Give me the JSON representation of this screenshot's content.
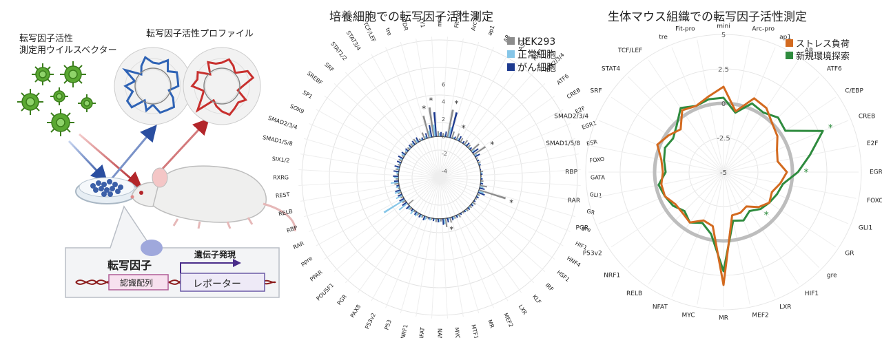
{
  "schematic": {
    "vector_label_line1": "転写因子活性",
    "vector_label_line2": "測定用ウイルスベクター",
    "profile_label": "転写因子活性プロファイル",
    "tf_label": "転写因子",
    "expression_label": "遺伝子発現",
    "recognition_label": "認識配列",
    "reporter_label": "レポーター"
  },
  "chart_mid": {
    "title": "培養細胞での転写因子活性測定",
    "legend": [
      "HEK293",
      "正常細胞",
      "がん細胞"
    ],
    "colors": {
      "hek": "#8c8c8c",
      "normal": "#86c6e8",
      "cancer": "#1d3a8f"
    },
    "ticks": [
      "6",
      "4",
      "2",
      "0",
      "-2",
      "-4"
    ],
    "labels": [
      "mini",
      "Fit-pro",
      "Arc-pro",
      "ap1",
      "AR",
      "ASCL",
      "ATF1",
      "ATF2/3/4",
      "ATF6",
      "CREB",
      "E2F",
      "EGR1",
      "ESR",
      "FOXO",
      "GATA",
      "GLI1",
      "GR",
      "gre",
      "HIF1",
      "HNF4",
      "HSF1",
      "IRF",
      "KLF",
      "LXR",
      "MEF2",
      "MR",
      "MTF1",
      "MYC",
      "NANOG",
      "NFAT",
      "NRF1",
      "P53",
      "P53v2",
      "PAX8",
      "PGR",
      "POU5F1",
      "PPAR",
      "ppre",
      "RAR",
      "RBP",
      "RELB",
      "REST",
      "RXRG",
      "SIX1/2",
      "SMAD1/5/8",
      "SMAD2/3/4",
      "SOX9",
      "SP1",
      "SREBF",
      "SRF",
      "STAT1/2",
      "STAT3/4",
      "TCF/LEF",
      "tre",
      "VDR",
      "YY1"
    ],
    "series": {
      "hek": [
        0.6,
        0.4,
        3.2,
        0.8,
        0.8,
        0.5,
        0.6,
        0.4,
        1.2,
        1.6,
        0.2,
        0.3,
        0.1,
        0.3,
        0.0,
        0.3,
        0.8,
        3.2,
        0.3,
        0.2,
        0.4,
        0.3,
        0.3,
        0.2,
        0.4,
        0.3,
        0.6,
        1.0,
        0.3,
        0.4,
        0.2,
        0.2,
        0.3,
        0.3,
        0.2,
        0.3,
        -0.8,
        0.4,
        0.3,
        0.4,
        0.2,
        0.5,
        0.3,
        0.2,
        0.4,
        0.3,
        0.4,
        0.3,
        0.2,
        0.3,
        0.4,
        0.6,
        0.3,
        0.8,
        2.6,
        3.4
      ],
      "normal": [
        0.4,
        0.2,
        1.2,
        0.2,
        0.3,
        0.1,
        0.2,
        0.2,
        0.4,
        0.3,
        0.1,
        0.2,
        0.0,
        0.2,
        0.1,
        0.2,
        0.4,
        0.6,
        0.2,
        0.1,
        0.2,
        0.2,
        0.2,
        0.1,
        0.2,
        0.3,
        0.2,
        0.6,
        0.4,
        0.2,
        0.3,
        0.4,
        0.3,
        0.5,
        0.6,
        0.4,
        1.2,
        2.8,
        0.8,
        0.7,
        0.4,
        0.9,
        0.5,
        0.3,
        0.3,
        0.2,
        0.3,
        0.4,
        0.3,
        0.2,
        0.3,
        0.4,
        0.2,
        0.3,
        0.8,
        1.4
      ],
      "cancer": [
        0.5,
        0.6,
        3.0,
        0.3,
        0.6,
        0.3,
        0.5,
        0.3,
        0.8,
        0.6,
        0.2,
        0.2,
        0.1,
        0.2,
        0.2,
        0.3,
        0.6,
        0.8,
        0.3,
        0.2,
        0.3,
        0.3,
        0.2,
        0.2,
        0.3,
        0.4,
        0.5,
        0.7,
        0.4,
        0.3,
        0.2,
        0.5,
        0.4,
        0.4,
        0.3,
        0.5,
        0.6,
        0.6,
        0.5,
        0.6,
        0.3,
        0.5,
        0.6,
        0.6,
        0.6,
        0.5,
        0.6,
        0.5,
        0.4,
        0.4,
        0.5,
        0.6,
        0.3,
        0.6,
        1.4,
        2.8
      ]
    },
    "stars": [
      "VDR",
      "YY1",
      "Arc-pro",
      "AR",
      "CREB",
      "gre",
      "MTF1"
    ]
  },
  "chart_right": {
    "title": "生体マウス組織での転写因子活性測定",
    "legend": [
      "ストレス負荷",
      "新規環境探索"
    ],
    "colors": {
      "stress": "#d36a1f",
      "explore": "#2e8b3e"
    },
    "ticks": [
      "5",
      "2.5",
      "0",
      "-2.5",
      "-5"
    ],
    "labels": [
      "mini",
      "Arc-pro",
      "ap1",
      "AR",
      "ATF6",
      "C/EBP",
      "CREB",
      "E2F",
      "EGR1",
      "FOXO",
      "GLI1",
      "GR",
      "gre",
      "HIF1",
      "LXR",
      "MEF2",
      "MR",
      "MYC",
      "NFAT",
      "RELB",
      "NRF1",
      "P53v2",
      "PGR",
      "RAR",
      "RBP",
      "SMAD1/5/8",
      "SMAD2/3/4",
      "SRF",
      "STAT4",
      "TCF/LEF",
      "tre",
      "Fit-pro"
    ],
    "series": {
      "stress": [
        1.2,
        -0.5,
        0.8,
        0.6,
        0.0,
        -0.3,
        -0.8,
        -1.0,
        -0.4,
        -0.8,
        -1.2,
        -1.0,
        -1.4,
        -2.0,
        -1.8,
        -1.8,
        3.2,
        -1.0,
        -1.2,
        -0.6,
        -0.8,
        -0.8,
        -0.4,
        -0.4,
        -0.6,
        -0.4,
        0.2,
        -0.2,
        -0.6,
        0.4,
        0.2,
        0.6
      ],
      "explore": [
        0.4,
        -0.6,
        0.4,
        0.2,
        0.6,
        0.4,
        2.8,
        1.4,
        0.4,
        -0.6,
        -0.8,
        -1.0,
        -1.2,
        -1.6,
        -1.2,
        -1.4,
        2.2,
        -0.4,
        -1.0,
        -0.6,
        -1.0,
        -0.6,
        -0.4,
        -0.2,
        -0.8,
        -0.6,
        -0.4,
        -0.6,
        -0.2,
        0.6,
        0.2,
        0.4
      ]
    },
    "stars": [
      "CREB",
      "EGR1",
      "gre"
    ]
  }
}
